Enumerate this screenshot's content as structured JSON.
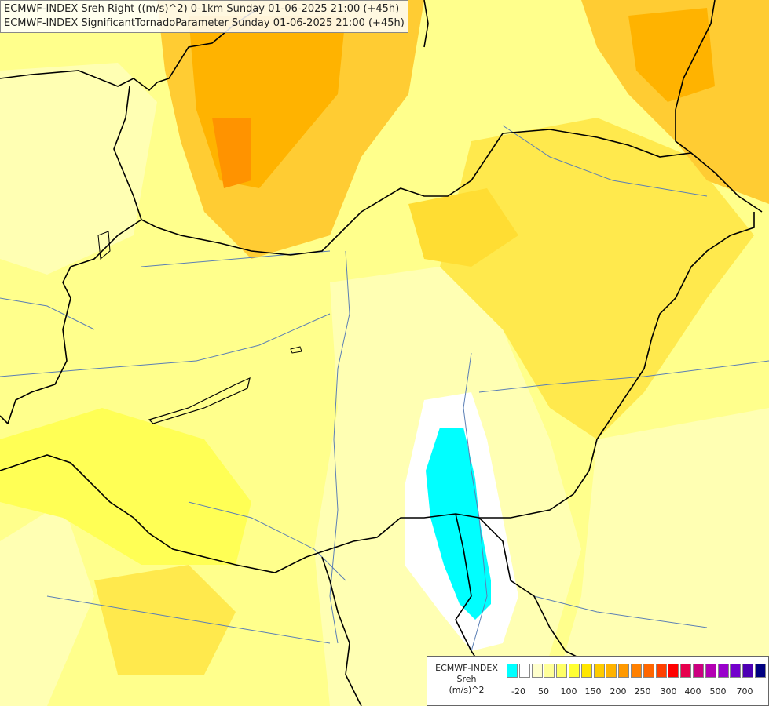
{
  "title": {
    "line1": "ECMWF-INDEX Sreh Right ((m/s)^2) 0-1km Sunday 01-06-2025 21:00 (+45h)",
    "line2": "ECMWF-INDEX SignificantTornadoParameter Sunday 01-06-2025 21:00 (+45h)"
  },
  "legend": {
    "line1": "ECMWF-INDEX",
    "line2": "Sreh",
    "line3": "(m/s)^2",
    "colors": [
      "#00ffff",
      "#ffffff",
      "#ffffcc",
      "#ffff99",
      "#ffff66",
      "#ffff33",
      "#ffe600",
      "#ffcc00",
      "#ffb300",
      "#ff9900",
      "#ff8000",
      "#ff6600",
      "#ff4000",
      "#ff0000",
      "#e6004d",
      "#cc0080",
      "#b300b3",
      "#9900cc",
      "#7300cc",
      "#4d00b3",
      "#000080"
    ],
    "ticks": [
      "-20",
      "50",
      "100",
      "150",
      "200",
      "250",
      "300",
      "400",
      "500",
      "700"
    ]
  }
}
